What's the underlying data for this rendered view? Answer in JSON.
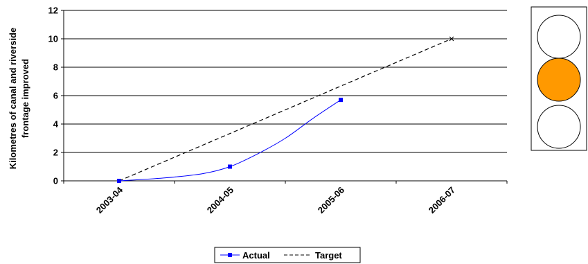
{
  "chart_data": {
    "type": "line",
    "categories": [
      "2003-04",
      "2004-05",
      "2005-06",
      "2006-07"
    ],
    "ylabel": [
      "Kilometres of canal and riverside",
      "frontage improved"
    ],
    "ylim": [
      0,
      12
    ],
    "yticks": [
      "0",
      "2",
      "4",
      "6",
      "8",
      "10",
      "12"
    ],
    "grid": true,
    "legend": "bottom",
    "series": [
      {
        "name": "Actual",
        "color": "#0000ff",
        "line_style": "solid",
        "marker": "square",
        "values": [
          0,
          1,
          5.7,
          null
        ],
        "curve": [
          [
            0,
            0
          ],
          [
            0.4,
            0.2
          ],
          [
            0.75,
            0.5
          ],
          [
            1,
            1
          ],
          [
            1.25,
            1.9
          ],
          [
            1.5,
            3
          ],
          [
            1.75,
            4.4
          ],
          [
            2,
            5.7
          ]
        ]
      },
      {
        "name": "Target",
        "color": "#000000",
        "line_style": "dashed",
        "marker": "none",
        "values": [
          0,
          3.33,
          6.67,
          10
        ]
      }
    ]
  },
  "status_indicator": {
    "lights": [
      {
        "state": "off",
        "color": "#ffffff"
      },
      {
        "state": "on",
        "color": "#ff9900"
      },
      {
        "state": "off",
        "color": "#ffffff"
      }
    ]
  }
}
